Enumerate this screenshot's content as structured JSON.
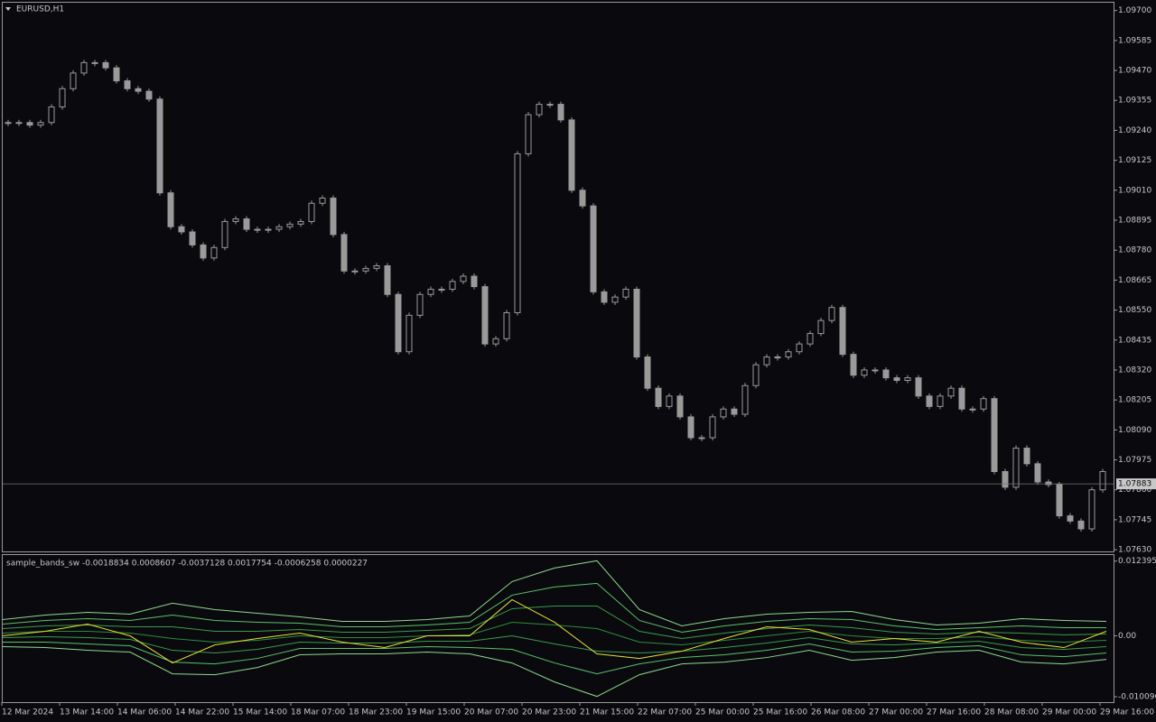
{
  "header": {
    "symbol": "EURUSD,H1"
  },
  "chart_data": [
    {
      "type": "candlestick",
      "color": "#9a9a9a",
      "close": [
        1.0927,
        1.0927,
        1.0926,
        1.0927,
        1.0933,
        1.094,
        1.0946,
        1.095,
        1.095,
        1.0948,
        1.0943,
        1.094,
        1.0939,
        1.0936,
        1.09,
        1.0887,
        1.0885,
        1.088,
        1.0875,
        1.0879,
        1.0889,
        1.089,
        1.0886,
        1.0886,
        1.0886,
        1.0887,
        1.0888,
        1.0889,
        1.0896,
        1.0898,
        1.0884,
        1.087,
        1.087,
        1.0871,
        1.0872,
        1.0861,
        1.0839,
        1.0853,
        1.0861,
        1.0863,
        1.0863,
        1.0866,
        1.0868,
        1.0864,
        1.0842,
        1.0844,
        1.0854,
        1.0915,
        1.093,
        1.0934,
        1.0934,
        1.0928,
        1.0901,
        1.0895,
        1.0862,
        1.0858,
        1.086,
        1.0863,
        1.0837,
        1.0825,
        1.0818,
        1.0822,
        1.0814,
        1.0806,
        1.0806,
        1.0814,
        1.0817,
        1.0815,
        1.0826,
        1.0834,
        1.0837,
        1.0837,
        1.0839,
        1.0842,
        1.0846,
        1.0851,
        1.0856,
        1.0838,
        1.083,
        1.0832,
        1.0832,
        1.0829,
        1.0828,
        1.0829,
        1.0822,
        1.0818,
        1.0822,
        1.0825,
        1.0817,
        1.0817,
        1.0821,
        1.0793,
        1.0787,
        1.0802,
        1.0796,
        1.0789,
        1.0788,
        1.0776,
        1.0774,
        1.0771,
        1.0786,
        1.0793
      ],
      "last_price": 1.07883,
      "ylim": [
        1.0762,
        1.0973
      ],
      "yticks": [
        {
          "value": 1.097,
          "label": "1.09700"
        },
        1.09585,
        {
          "value": 1.0947,
          "label": "1.09470"
        },
        1.09355,
        {
          "value": 1.0924,
          "label": "1.09240"
        },
        1.09125,
        {
          "value": 1.0901,
          "label": "1.09010"
        },
        1.08895,
        {
          "value": 1.0878,
          "label": "1.08780"
        },
        1.08665,
        {
          "value": 1.0855,
          "label": "1.08550"
        },
        1.08435,
        {
          "value": 1.0832,
          "label": "1.08320"
        },
        1.08205,
        {
          "value": 1.0809,
          "label": "1.08090"
        },
        1.07975,
        {
          "value": 1.0786,
          "label": "1.07860"
        },
        1.07745,
        {
          "value": 1.0763,
          "label": "1.07630"
        }
      ]
    },
    {
      "type": "line",
      "title": "sample_bands_sw -0.0018834 0.0008607 -0.0037128 0.0017754 -0.0006258 0.0000227",
      "ylim": [
        -0.011,
        0.0134
      ],
      "yticks": [
        0.0123955,
        {
          "value": 0,
          "label": "0.00"
        },
        -0.010096
      ],
      "series": [
        {
          "color": "#8fd88f",
          "values": [
            0.0027,
            0.00345,
            0.0039,
            0.0036,
            0.0054,
            0.00435,
            0.00375,
            0.00315,
            0.0024,
            0.0024,
            0.0027,
            0.0033,
            0.009,
            0.01125,
            0.01245,
            0.00435,
            0.00165,
            0.00285,
            0.0036,
            0.0039,
            0.00405,
            0.0027,
            0.0018,
            0.0021,
            0.00285,
            0.00255,
            0.0024
          ]
        },
        {
          "color": "#5cc06a",
          "values": [
            0.00195,
            0.00255,
            0.00285,
            0.00255,
            0.00345,
            0.00255,
            0.00225,
            0.0021,
            0.0015,
            0.0015,
            0.0018,
            0.00225,
            0.00675,
            0.0081,
            0.0087,
            0.00255,
            0.0006,
            0.00165,
            0.0024,
            0.00285,
            0.0027,
            0.00165,
            0.00105,
            0.00135,
            0.00165,
            0.00135,
            0.00135
          ]
        },
        {
          "color": "#3a9a4a",
          "values": [
            0.0012,
            0.00165,
            0.0018,
            0.0015,
            0.0015,
            0.00075,
            0.00075,
            0.00105,
            0.0006,
            0.0006,
            0.0009,
            0.0012,
            0.0045,
            0.00495,
            0.00495,
            0.00075,
            -0.00045,
            0.00045,
            0.0012,
            0.0018,
            0.00135,
            0.0006,
            0.0003,
            0.0006,
            0.00045,
            0.00015,
            0.0003
          ]
        },
        {
          "color": "#2e8b3e",
          "values": [
            0.00045,
            0.00075,
            0.00075,
            0.00045,
            -0.00045,
            -0.00105,
            -0.00075,
            0,
            -0.0003,
            -0.0003,
            0,
            0.00015,
            0.00225,
            0.0018,
            0.0012,
            -0.00105,
            -0.0015,
            -0.00075,
            0,
            0.00075,
            0,
            -0.00045,
            -0.00045,
            -0.00015,
            -0.00075,
            -0.00105,
            -0.00075
          ]
        },
        {
          "color": "#3a9a4a",
          "values": [
            -0.0003,
            -0.00015,
            -0.0003,
            -0.0006,
            -0.0024,
            -0.00285,
            -0.00225,
            -0.00105,
            -0.0012,
            -0.0012,
            -0.0009,
            -0.0009,
            0,
            -0.00135,
            -0.00255,
            -0.00285,
            -0.00255,
            -0.00195,
            -0.0012,
            -0.0003,
            -0.00135,
            -0.0015,
            -0.0012,
            -0.0009,
            -0.00195,
            -0.00225,
            -0.0018
          ]
        },
        {
          "color": "#5cc06a",
          "values": [
            -0.00105,
            -0.00105,
            -0.00135,
            -0.00165,
            -0.00435,
            -0.00465,
            -0.00375,
            -0.0021,
            -0.0021,
            -0.0021,
            -0.0018,
            -0.00195,
            -0.00225,
            -0.0045,
            -0.0063,
            -0.00465,
            -0.0036,
            -0.00315,
            -0.0024,
            -0.00135,
            -0.0027,
            -0.00255,
            -0.00195,
            -0.00165,
            -0.00315,
            -0.00345,
            -0.00285
          ]
        },
        {
          "color": "#8fd88f",
          "values": [
            -0.0018,
            -0.00195,
            -0.0024,
            -0.0027,
            -0.0063,
            -0.00645,
            -0.00525,
            -0.00315,
            -0.003,
            -0.003,
            -0.0027,
            -0.003,
            -0.0045,
            -0.00765,
            -0.01005,
            -0.00645,
            -0.00465,
            -0.00435,
            -0.0036,
            -0.0024,
            -0.00405,
            -0.0036,
            -0.0027,
            -0.0024,
            -0.00435,
            -0.00465,
            -0.0039
          ]
        },
        {
          "color": "#e8e030",
          "values": [
            0,
            0.00075,
            0.00195,
            0,
            -0.0045,
            -0.0015,
            -0.00045,
            0.00045,
            -0.00105,
            -0.00195,
            0,
            0,
            0.006,
            0.00225,
            -0.003,
            -0.00375,
            -0.00255,
            -0.00045,
            0.0015,
            0.00105,
            -0.00105,
            -0.00045,
            -0.00105,
            0.00075,
            -0.00105,
            -0.00195,
            0.00075
          ]
        }
      ]
    }
  ],
  "xlabels": [
    "12 Mar 2024",
    "13 Mar 14:00",
    "14 Mar 06:00",
    "14 Mar 22:00",
    "15 Mar 14:00",
    "18 Mar 07:00",
    "18 Mar 23:00",
    "19 Mar 15:00",
    "20 Mar 07:00",
    "20 Mar 23:00",
    "21 Mar 15:00",
    "22 Mar 07:00",
    "25 Mar 00:00",
    "25 Mar 16:00",
    "26 Mar 08:00",
    "27 Mar 00:00",
    "27 Mar 16:00",
    "28 Mar 08:00",
    "29 Mar 00:00",
    "29 Mar 16:00"
  ]
}
